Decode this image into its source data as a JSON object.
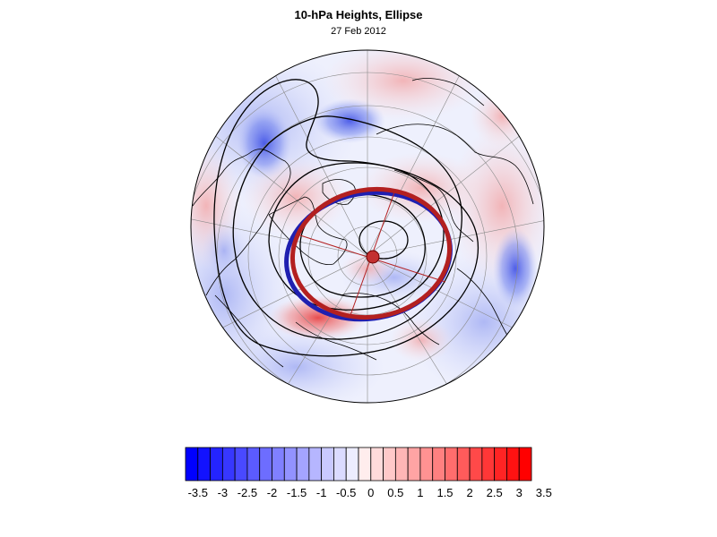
{
  "title": "10-hPa Heights, Ellipse",
  "subtitle": "27 Feb 2012",
  "colorbar": {
    "labels": [
      "-3.5",
      "-3",
      "-2.5",
      "-2",
      "-1.5",
      "-1",
      "-0.5",
      "0",
      "0.5",
      "1",
      "1.5",
      "2",
      "2.5",
      "3",
      "3.5"
    ],
    "negative_color": "#0000ff",
    "positive_color": "#ff0000",
    "neutral_color": "#ffffff"
  },
  "map": {
    "projection": "polar-stereographic-north",
    "anomaly_low_color": "#6f80ee",
    "anomaly_high_color": "#f08a8a",
    "contour_color": "#000000",
    "ellipse_colors": [
      "#1f1fb0",
      "#b32020"
    ]
  }
}
